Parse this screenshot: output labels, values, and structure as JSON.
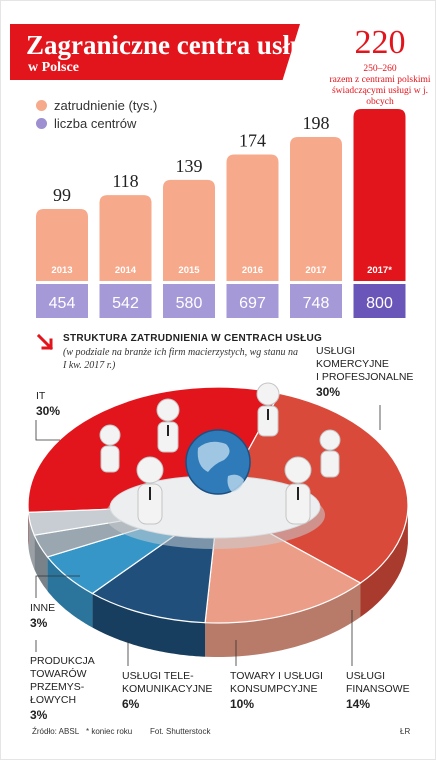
{
  "header": {
    "title": "Zagraniczne centra usług",
    "subtitle": "w Polsce",
    "highlight_number": "220",
    "highlight_range": "250–260",
    "highlight_text": "razem z centrami polskimi świadczącymi usługi w j. obcych"
  },
  "legend": [
    {
      "label": "zatrudnienie (tys.)",
      "color": "#f6a98b"
    },
    {
      "label": "liczba centrów",
      "color": "#9d8fd0"
    }
  ],
  "chart_data": [
    {
      "type": "bar",
      "categories": [
        "2013",
        "2014",
        "2015",
        "2016",
        "2017",
        "2017*"
      ],
      "series": [
        {
          "name": "zatrudnienie (tys.)",
          "values": [
            99,
            118,
            139,
            174,
            198,
            null
          ]
        },
        {
          "name": "liczba centrów",
          "values": [
            454,
            542,
            580,
            697,
            748,
            800
          ]
        }
      ],
      "highlight_category": "2017*",
      "colors": {
        "bar": "#f6a98b",
        "highlight": "#e3151c",
        "count_box": "#a699d8",
        "count_box_highlight": "#6a55b8"
      }
    },
    {
      "type": "pie",
      "title": "Struktura zatrudnienia w centrach usług",
      "subtitle": "(w podziale na branże ich firm macierzystych, wg stanu na I kw. 2017 r.)",
      "slices": [
        {
          "label": "IT",
          "value": 30,
          "color": "#e3151c"
        },
        {
          "label": "Usługi komercyjne i profesjonalne",
          "value": 30,
          "color": "#d94a3b"
        },
        {
          "label": "Usługi finansowe",
          "value": 14,
          "color": "#ec9d87"
        },
        {
          "label": "Towary i usługi konsumpcyjne",
          "value": 10,
          "color": "#1f4f7a"
        },
        {
          "label": "Usługi telekomunikacyjne",
          "value": 6,
          "color": "#3796c8"
        },
        {
          "label": "Produkcja towarów przemysłowych",
          "value": 3,
          "color": "#9ba7b0"
        },
        {
          "label": "Inne",
          "value": 3,
          "color": "#c7cdd2"
        }
      ]
    }
  ],
  "pie_labels": {
    "it": {
      "l1": "IT",
      "pct": "30%"
    },
    "komercyjne": {
      "l1": "Usługi",
      "l2": "komercyjne",
      "l3": "i profesjonalne",
      "pct": "30%"
    },
    "inne": {
      "l1": "Inne",
      "pct": "3%"
    },
    "produkcja": {
      "l1": "Produkcja",
      "l2": "towarów",
      "l3": "przemys-",
      "l4": "łowych",
      "pct": "3%"
    },
    "tele": {
      "l1": "Usługi tele-",
      "l2": "komunikacyjne",
      "pct": "6%"
    },
    "towary": {
      "l1": "Towary i usługi",
      "l2": "konsumpcyjne",
      "pct": "10%"
    },
    "finansowe": {
      "l1": "Usługi",
      "l2": "finansowe",
      "pct": "14%"
    }
  },
  "footer": {
    "source": "Źródło: ABSL",
    "note": "* koniec roku",
    "photo": "Fot. Shutterstock",
    "author": "ŁR"
  }
}
